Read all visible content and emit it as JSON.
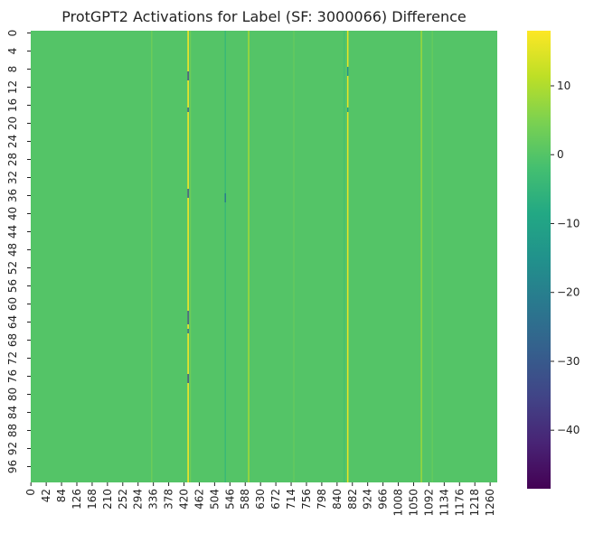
{
  "chart_data": {
    "type": "heatmap",
    "title": "ProtGPT2 Activations for Label (SF: 3000066) Difference",
    "xlabel": "",
    "ylabel": "",
    "n_rows": 100,
    "n_cols": 1280,
    "xlim": [
      0,
      1280
    ],
    "ylim": [
      0,
      100
    ],
    "x_tick_labels": [
      "0",
      "42",
      "84",
      "126",
      "168",
      "210",
      "252",
      "294",
      "336",
      "378",
      "420",
      "462",
      "504",
      "546",
      "588",
      "630",
      "672",
      "714",
      "756",
      "798",
      "840",
      "882",
      "924",
      "966",
      "1008",
      "1050",
      "1092",
      "1134",
      "1176",
      "1218",
      "1260"
    ],
    "y_tick_labels": [
      "0",
      "4",
      "8",
      "12",
      "16",
      "20",
      "24",
      "28",
      "32",
      "36",
      "40",
      "44",
      "48",
      "52",
      "56",
      "60",
      "64",
      "68",
      "72",
      "76",
      "80",
      "84",
      "88",
      "92",
      "96"
    ],
    "colorbar": {
      "colormap": "viridis",
      "min": -48.5,
      "max": 18,
      "tick_values": [
        10,
        0,
        -10,
        -20,
        -30,
        -40
      ],
      "tick_labels": [
        "10",
        "0",
        "−10",
        "−20",
        "−30",
        "−40"
      ]
    },
    "baseline_value": 0,
    "column_highlights": [
      {
        "col": 430,
        "value": 18
      },
      {
        "col": 868,
        "value": 16
      },
      {
        "col": 596,
        "value": 9
      },
      {
        "col": 1070,
        "value": 8
      },
      {
        "col": 436,
        "value": 3
      },
      {
        "col": 720,
        "value": 2
      },
      {
        "col": 532,
        "value": -4
      },
      {
        "col": 330,
        "value": 3
      },
      {
        "col": 858,
        "value": -2
      },
      {
        "col": 1100,
        "value": 2
      }
    ],
    "cell_highlights": [
      {
        "col": 430,
        "rows": [
          9,
          10
        ],
        "value": -32
      },
      {
        "col": 430,
        "rows": [
          17
        ],
        "value": -28
      },
      {
        "col": 430,
        "rows": [
          35,
          36
        ],
        "value": -30
      },
      {
        "col": 430,
        "rows": [
          62,
          63,
          64
        ],
        "value": -30
      },
      {
        "col": 430,
        "rows": [
          66
        ],
        "value": -25
      },
      {
        "col": 430,
        "rows": [
          76,
          77
        ],
        "value": -32
      },
      {
        "col": 868,
        "rows": [
          8,
          9
        ],
        "value": -15
      },
      {
        "col": 868,
        "rows": [
          17
        ],
        "value": -12
      },
      {
        "col": 532,
        "rows": [
          36,
          37
        ],
        "value": -20
      }
    ]
  }
}
